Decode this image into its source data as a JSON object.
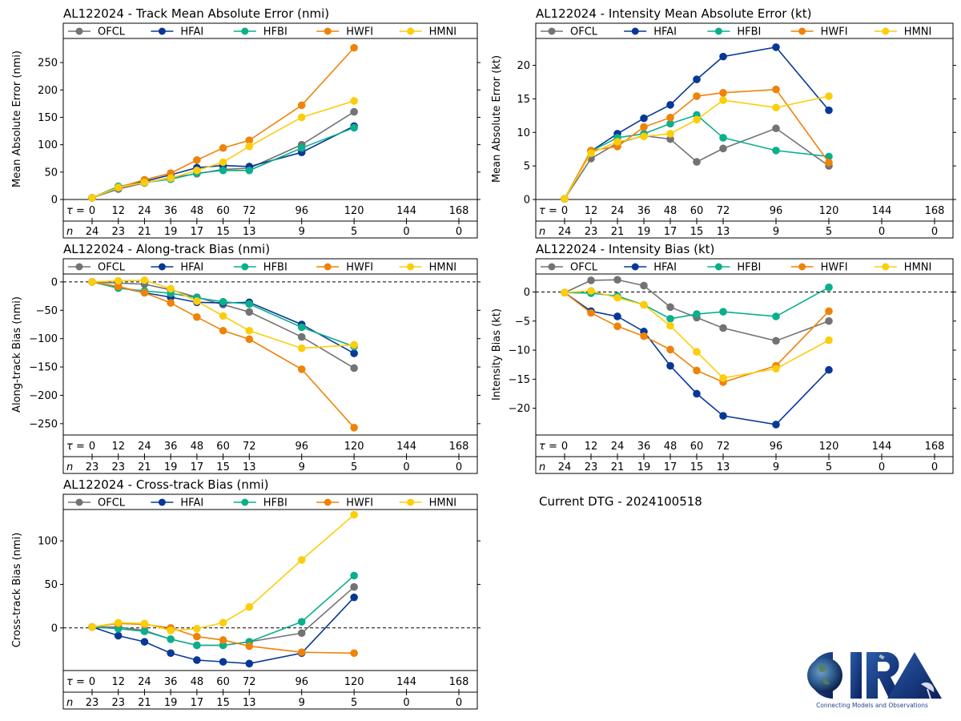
{
  "colors": {
    "OFCL": "#737373",
    "HFAI": "#073896",
    "HFBI": "#0aaf8c",
    "HWFI": "#ef8208",
    "HMNI": "#fccd0b"
  },
  "dtg_label": "Current DTG - 2024100518",
  "logo": {
    "text": "CIRA",
    "tagline": "Connecting Models and Observations"
  },
  "chart_data": [
    {
      "id": "track-mae",
      "type": "line",
      "title": "AL122024 - Track Mean Absolute Error (nmi)",
      "xlabel": "τ (h)",
      "ylabel": "Mean Absolute Error (nmi)",
      "ylim": [
        0,
        294
      ],
      "yticks": [
        0,
        50,
        100,
        150,
        200,
        250
      ],
      "zero_line": false,
      "legend": "top",
      "x_ticks": [
        0,
        12,
        24,
        36,
        48,
        60,
        72,
        96,
        120,
        144,
        168
      ],
      "n": [
        24,
        23,
        21,
        19,
        17,
        15,
        13,
        9,
        5,
        0,
        0
      ],
      "x": [
        0,
        12,
        24,
        36,
        48,
        60,
        72,
        96,
        120
      ],
      "series": [
        {
          "name": "OFCL",
          "values": [
            3,
            19,
            30,
            40,
            47,
            55,
            57,
            100,
            160
          ]
        },
        {
          "name": "HFAI",
          "values": [
            3,
            23,
            33,
            45,
            58,
            62,
            60,
            86,
            134
          ]
        },
        {
          "name": "HFBI",
          "values": [
            3,
            24,
            31,
            37,
            48,
            53,
            53,
            94,
            131
          ]
        },
        {
          "name": "HWFI",
          "values": [
            3,
            22,
            36,
            48,
            72,
            94,
            108,
            172,
            277
          ]
        },
        {
          "name": "HMNI",
          "values": [
            3,
            22,
            31,
            39,
            53,
            68,
            97,
            150,
            180
          ]
        }
      ]
    },
    {
      "id": "intensity-mae",
      "type": "line",
      "title": "AL122024 - Intensity Mean Absolute Error (kt)",
      "xlabel": "τ (h)",
      "ylabel": "Mean Absolute Error (kt)",
      "ylim": [
        0,
        24
      ],
      "yticks": [
        0,
        5,
        10,
        15,
        20
      ],
      "zero_line": false,
      "legend": "top",
      "x_ticks": [
        0,
        12,
        24,
        36,
        48,
        60,
        72,
        96,
        120,
        144,
        168
      ],
      "n": [
        24,
        23,
        21,
        19,
        17,
        15,
        13,
        9,
        5,
        0,
        0
      ],
      "x": [
        0,
        12,
        24,
        36,
        48,
        60,
        72,
        96,
        120
      ],
      "series": [
        {
          "name": "OFCL",
          "values": [
            0.1,
            6.1,
            8.4,
            9.5,
            9.0,
            5.6,
            7.6,
            10.6,
            5.0
          ]
        },
        {
          "name": "HFAI",
          "values": [
            0.1,
            7.2,
            9.8,
            12.1,
            14.1,
            17.9,
            21.3,
            22.7,
            13.3
          ]
        },
        {
          "name": "HFBI",
          "values": [
            0.1,
            7.2,
            9.2,
            9.8,
            11.3,
            12.6,
            9.2,
            7.3,
            6.4
          ]
        },
        {
          "name": "HWFI",
          "values": [
            0.1,
            7.3,
            7.9,
            10.8,
            12.2,
            15.4,
            15.9,
            16.4,
            5.5
          ]
        },
        {
          "name": "HMNI",
          "values": [
            0.1,
            6.9,
            8.6,
            9.4,
            9.8,
            11.9,
            14.8,
            13.7,
            15.4
          ]
        }
      ]
    },
    {
      "id": "along-track-bias",
      "type": "line",
      "title": "AL122024 - Along-track Bias (nmi)",
      "xlabel": "τ (h)",
      "ylabel": "Along-track Bias (nmi)",
      "ylim": [
        -270,
        14
      ],
      "yticks": [
        -250,
        -200,
        -150,
        -100,
        -50,
        0
      ],
      "zero_line": true,
      "legend": "top",
      "x_ticks": [
        0,
        12,
        24,
        36,
        48,
        60,
        72,
        96,
        120,
        144,
        168
      ],
      "n": [
        23,
        23,
        21,
        19,
        17,
        15,
        13,
        9,
        5,
        0,
        0
      ],
      "x": [
        0,
        12,
        24,
        36,
        48,
        60,
        72,
        96,
        120
      ],
      "series": [
        {
          "name": "OFCL",
          "values": [
            0,
            -2,
            -4,
            -14,
            -27,
            -40,
            -53,
            -97,
            -152
          ]
        },
        {
          "name": "HFAI",
          "values": [
            0,
            -9,
            -19,
            -27,
            -36,
            -37,
            -36,
            -75,
            -126
          ]
        },
        {
          "name": "HFBI",
          "values": [
            0,
            -11,
            -16,
            -20,
            -28,
            -35,
            -39,
            -80,
            -114
          ]
        },
        {
          "name": "HWFI",
          "values": [
            0,
            -8,
            -19,
            -37,
            -62,
            -86,
            -101,
            -154,
            -257
          ]
        },
        {
          "name": "HMNI",
          "values": [
            0,
            2,
            3,
            -12,
            -34,
            -60,
            -86,
            -117,
            -111
          ]
        }
      ]
    },
    {
      "id": "intensity-bias",
      "type": "line",
      "title": "AL122024 - Intensity Bias (kt)",
      "xlabel": "τ (h)",
      "ylabel": "Intensity Bias (kt)",
      "ylim": [
        -24.6,
        3.1
      ],
      "yticks": [
        -20,
        -15,
        -10,
        -5,
        0
      ],
      "zero_line": true,
      "legend": "top",
      "x_ticks": [
        0,
        12,
        24,
        36,
        48,
        60,
        72,
        96,
        120,
        144,
        168
      ],
      "n": [
        24,
        23,
        21,
        19,
        17,
        15,
        13,
        9,
        5,
        0,
        0
      ],
      "x": [
        0,
        12,
        24,
        36,
        48,
        60,
        72,
        96,
        120
      ],
      "series": [
        {
          "name": "OFCL",
          "values": [
            -0.1,
            2.0,
            2.1,
            1.1,
            -2.6,
            -4.4,
            -6.2,
            -8.4,
            -5.0
          ]
        },
        {
          "name": "HFAI",
          "values": [
            -0.1,
            -3.3,
            -4.2,
            -6.8,
            -12.7,
            -17.5,
            -21.3,
            -22.8,
            -13.4
          ]
        },
        {
          "name": "HFBI",
          "values": [
            -0.1,
            -0.2,
            -0.7,
            -2.2,
            -4.6,
            -3.8,
            -3.4,
            -4.2,
            0.8
          ]
        },
        {
          "name": "HWFI",
          "values": [
            -0.1,
            -3.6,
            -5.9,
            -7.6,
            -9.9,
            -13.5,
            -15.5,
            -12.7,
            -3.3
          ]
        },
        {
          "name": "HMNI",
          "values": [
            -0.1,
            0.2,
            -1.0,
            -2.2,
            -5.8,
            -10.3,
            -14.8,
            -13.2,
            -8.3
          ]
        }
      ]
    },
    {
      "id": "cross-track-bias",
      "type": "line",
      "title": "AL122024 - Cross-track Bias (nmi)",
      "xlabel": "τ (h)",
      "ylabel": "Cross-track Bias (nmi)",
      "ylim": [
        -49,
        136
      ],
      "yticks": [
        0,
        50,
        100
      ],
      "zero_line": true,
      "legend": "top",
      "x_ticks": [
        0,
        12,
        24,
        36,
        48,
        60,
        72,
        96,
        120,
        144,
        168
      ],
      "n": [
        23,
        23,
        21,
        19,
        17,
        15,
        13,
        9,
        5,
        0,
        0
      ],
      "x": [
        0,
        12,
        24,
        36,
        48,
        60,
        72,
        96,
        120
      ],
      "series": [
        {
          "name": "OFCL",
          "values": [
            1,
            1,
            -3,
            -13,
            -20,
            -20,
            -16,
            -6,
            47
          ]
        },
        {
          "name": "HFAI",
          "values": [
            1,
            -9,
            -16,
            -29,
            -37,
            -39,
            -41,
            -29,
            35
          ]
        },
        {
          "name": "HFBI",
          "values": [
            1,
            -1,
            -4,
            -13,
            -20,
            -20,
            -16,
            7,
            60
          ]
        },
        {
          "name": "HWFI",
          "values": [
            1,
            5,
            4,
            0,
            -10,
            -14,
            -21,
            -28,
            -29
          ]
        },
        {
          "name": "HMNI",
          "values": [
            1,
            6,
            5,
            -3,
            -1,
            6,
            24,
            78,
            130
          ]
        }
      ]
    }
  ]
}
